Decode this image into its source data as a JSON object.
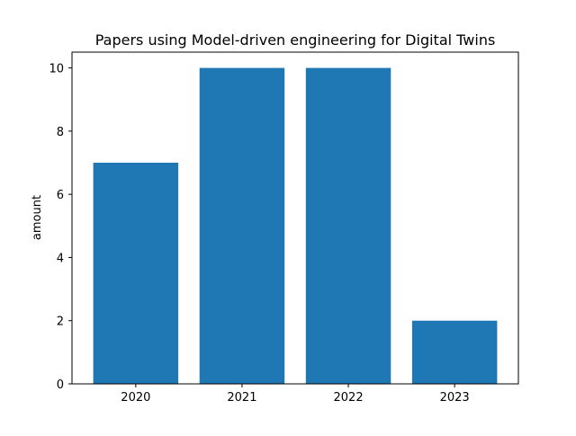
{
  "chart_data": {
    "type": "bar",
    "title": "Papers using Model-driven engineering for Digital Twins",
    "xlabel": "",
    "ylabel": "amount",
    "categories": [
      "2020",
      "2021",
      "2022",
      "2023"
    ],
    "values": [
      7,
      10,
      10,
      2
    ],
    "ylim": [
      0,
      10.5
    ],
    "yticks": [
      "0",
      "2",
      "4",
      "6",
      "8",
      "10"
    ],
    "grid": false,
    "legend": "none",
    "bar_color": "#1f77b4"
  }
}
